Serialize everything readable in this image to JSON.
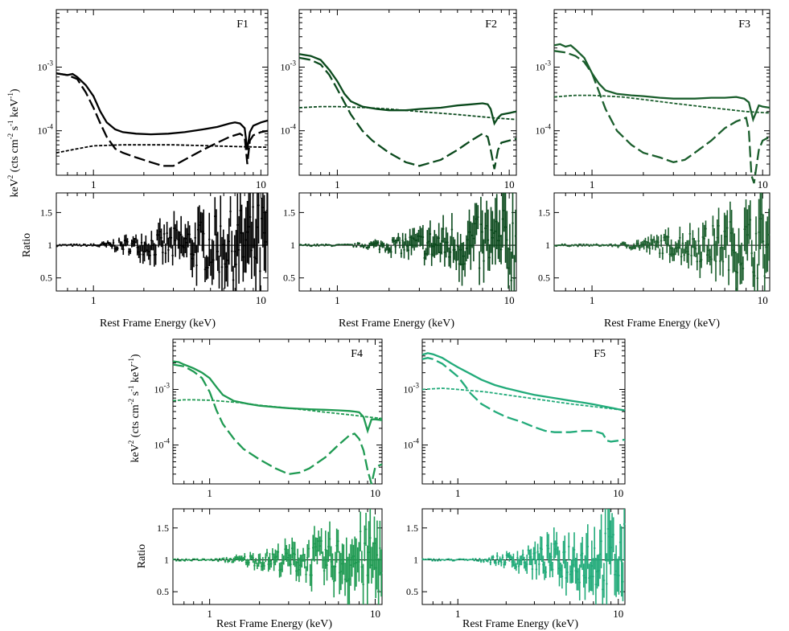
{
  "figure": {
    "spec_ylabel_main": "keV",
    "spec_ylabel_sup": "2",
    "spec_ylabel_rest": " (cts cm",
    "spec_ylabel_sup2": "-2",
    "spec_ylabel_s": " s",
    "spec_ylabel_sup3": "-1",
    "spec_ylabel_kev": " keV",
    "spec_ylabel_sup4": "-1",
    "spec_ylabel_close": ")",
    "ratio_ylabel": "Ratio",
    "xlabel": "Rest Frame Energy (keV)"
  },
  "chart_data": [
    {
      "type": "line",
      "panel": "F1",
      "title": "F1",
      "color": "#000000",
      "xscale": "log",
      "yscale": "log",
      "xlim": [
        0.6,
        11
      ],
      "ylim": [
        2e-05,
        0.008
      ],
      "xticklabels": [
        "1",
        "10"
      ],
      "yticklabels": [
        "10-3",
        "10-4"
      ],
      "series": [
        {
          "style": "solid",
          "x": [
            0.6,
            0.7,
            0.75,
            0.8,
            0.9,
            1.0,
            1.1,
            1.2,
            1.35,
            1.5,
            1.8,
            2.2,
            2.8,
            3.5,
            4.5,
            5.5,
            6.5,
            7.0,
            7.5,
            8.0,
            8.3,
            8.6,
            9.0,
            10.0,
            11.0
          ],
          "y": [
            0.0008,
            0.00075,
            0.00078,
            0.0007,
            0.00052,
            0.00035,
            0.0002,
            0.000135,
            0.000105,
            9.5e-05,
            9e-05,
            8.8e-05,
            9e-05,
            9.5e-05,
            0.000105,
            0.000115,
            0.00013,
            0.000135,
            0.00013,
            0.00011,
            5e-05,
            9.5e-05,
            0.00012,
            0.000135,
            0.000145
          ]
        },
        {
          "style": "dashed",
          "x": [
            0.6,
            0.7,
            0.8,
            0.9,
            1.0,
            1.1,
            1.2,
            1.35,
            1.5,
            1.8,
            2.2,
            2.6,
            3.0,
            3.5,
            4.5,
            5.5,
            6.5,
            7.5,
            8.0,
            8.3,
            8.6,
            9.0,
            10.0,
            11.0
          ],
          "y": [
            0.0008,
            0.00075,
            0.00065,
            0.0004,
            0.00023,
            0.00013,
            8e-05,
            5.2e-05,
            4.5e-05,
            3.8e-05,
            3.2e-05,
            2.8e-05,
            2.8e-05,
            3.5e-05,
            5e-05,
            6.5e-05,
            8e-05,
            9e-05,
            8e-05,
            3e-05,
            7e-05,
            8.5e-05,
            9.5e-05,
            0.0001
          ]
        },
        {
          "style": "dotted",
          "x": [
            0.6,
            0.8,
            1.0,
            1.5,
            2.0,
            3.0,
            5.0,
            8.0,
            11.0
          ],
          "y": [
            4.5e-05,
            5.2e-05,
            5.8e-05,
            6e-05,
            6e-05,
            6e-05,
            5.8e-05,
            5.6e-05,
            5.5e-05
          ]
        }
      ],
      "ratio": {
        "ylim": [
          0.3,
          1.8
        ],
        "yticklabels": [
          "1.5",
          "1",
          "0.5"
        ],
        "noise_start": 0.95,
        "noise_max": 0.7
      }
    },
    {
      "type": "line",
      "panel": "F2",
      "title": "F2",
      "color": "#0b4a1d",
      "xscale": "log",
      "yscale": "log",
      "xlim": [
        0.6,
        11
      ],
      "ylim": [
        2e-05,
        0.008
      ],
      "xticklabels": [
        "1",
        "10"
      ],
      "yticklabels": [
        "10-3",
        "10-4"
      ],
      "series": [
        {
          "style": "solid",
          "x": [
            0.6,
            0.7,
            0.8,
            0.9,
            1.0,
            1.1,
            1.2,
            1.4,
            1.7,
            2.0,
            2.5,
            3.0,
            4.0,
            5.0,
            6.0,
            7.0,
            7.5,
            7.8,
            8.2,
            8.6,
            9.0,
            10.0,
            11.0
          ],
          "y": [
            0.0016,
            0.0015,
            0.0013,
            0.0009,
            0.0006,
            0.00038,
            0.00029,
            0.00024,
            0.00022,
            0.00021,
            0.00021,
            0.00022,
            0.00023,
            0.00025,
            0.00026,
            0.00027,
            0.00026,
            0.00022,
            0.00013,
            0.00016,
            0.00018,
            0.00019,
            0.0002
          ]
        },
        {
          "style": "dashed",
          "x": [
            0.6,
            0.7,
            0.8,
            0.9,
            1.0,
            1.2,
            1.4,
            1.6,
            2.0,
            2.5,
            3.0,
            4.0,
            5.0,
            6.0,
            7.0,
            7.5,
            7.8,
            8.2,
            8.6,
            9.0,
            10.0,
            11.0
          ],
          "y": [
            0.0014,
            0.0013,
            0.0011,
            0.00075,
            0.00045,
            0.00018,
            0.0001,
            7e-05,
            4.5e-05,
            3.2e-05,
            2.8e-05,
            3.5e-05,
            5e-05,
            7e-05,
            9e-05,
            8e-05,
            5e-05,
            2.5e-05,
            5e-05,
            6.5e-05,
            7e-05,
            7.5e-05
          ]
        },
        {
          "style": "dotted",
          "x": [
            0.6,
            0.8,
            1.0,
            1.5,
            2.0,
            3.0,
            5.0,
            8.0,
            11.0
          ],
          "y": [
            0.00023,
            0.00024,
            0.00024,
            0.00023,
            0.00022,
            0.0002,
            0.00018,
            0.00016,
            0.00015
          ]
        }
      ],
      "ratio": {
        "ylim": [
          0.3,
          1.8
        ],
        "yticklabels": [
          "1.5",
          "1",
          "0.5"
        ],
        "noise_start": 1.2,
        "noise_max": 0.6
      }
    },
    {
      "type": "line",
      "panel": "F3",
      "title": "F3",
      "color": "#1a5e2c",
      "xscale": "log",
      "yscale": "log",
      "xlim": [
        0.6,
        11
      ],
      "ylim": [
        2e-05,
        0.008
      ],
      "xticklabels": [
        "1",
        "10"
      ],
      "yticklabels": [
        "10-3",
        "10-4"
      ],
      "series": [
        {
          "style": "solid",
          "x": [
            0.6,
            0.65,
            0.7,
            0.75,
            0.8,
            0.9,
            1.0,
            1.1,
            1.2,
            1.4,
            1.7,
            2.0,
            2.5,
            3.0,
            4.0,
            5.0,
            6.0,
            7.0,
            7.8,
            8.3,
            8.8,
            9.5,
            10.0,
            11.0
          ],
          "y": [
            0.0022,
            0.0023,
            0.0021,
            0.0022,
            0.0019,
            0.0014,
            0.0008,
            0.00055,
            0.00043,
            0.00038,
            0.00036,
            0.00035,
            0.00033,
            0.00032,
            0.00032,
            0.00033,
            0.00033,
            0.00034,
            0.00032,
            0.00028,
            0.00015,
            0.00025,
            0.00024,
            0.00023
          ]
        },
        {
          "style": "dashed",
          "x": [
            0.6,
            0.7,
            0.8,
            0.9,
            1.0,
            1.2,
            1.4,
            1.7,
            2.0,
            2.5,
            3.0,
            3.5,
            4.0,
            5.0,
            6.0,
            7.0,
            8.0,
            8.3,
            8.6,
            8.9,
            9.5,
            10.0,
            11.0
          ],
          "y": [
            0.0018,
            0.0017,
            0.0015,
            0.0012,
            0.0008,
            0.00022,
            0.0001,
            6e-05,
            4.5e-05,
            3.8e-05,
            3.2e-05,
            3.5e-05,
            4.5e-05,
            7e-05,
            0.00011,
            0.00014,
            0.00016,
            0.0001,
            2e-05,
            1.5e-05,
            5e-05,
            7e-05,
            8e-05
          ]
        },
        {
          "style": "dotted",
          "x": [
            0.6,
            0.8,
            1.0,
            1.5,
            2.0,
            3.0,
            5.0,
            8.0,
            11.0
          ],
          "y": [
            0.00034,
            0.00036,
            0.00036,
            0.00034,
            0.00031,
            0.00027,
            0.00023,
            0.0002,
            0.00019
          ]
        }
      ],
      "ratio": {
        "ylim": [
          0.3,
          1.8
        ],
        "yticklabels": [
          "1.5",
          "1",
          "0.5"
        ],
        "noise_start": 1.3,
        "noise_max": 0.55
      }
    },
    {
      "type": "line",
      "panel": "F4",
      "title": "F4",
      "color": "#1f9a52",
      "xscale": "log",
      "yscale": "log",
      "xlim": [
        0.6,
        11
      ],
      "ylim": [
        2e-05,
        0.008
      ],
      "xticklabels": [
        "1",
        "10"
      ],
      "yticklabels": [
        "10-3",
        "10-4"
      ],
      "series": [
        {
          "style": "solid",
          "x": [
            0.6,
            0.65,
            0.7,
            0.8,
            0.9,
            1.0,
            1.1,
            1.2,
            1.4,
            1.7,
            2.0,
            2.5,
            3.0,
            4.0,
            5.0,
            6.0,
            7.0,
            7.5,
            8.0,
            8.5,
            9.0,
            9.5,
            10.0,
            11.0
          ],
          "y": [
            0.0032,
            0.0031,
            0.0028,
            0.0024,
            0.002,
            0.0016,
            0.0011,
            0.0008,
            0.00062,
            0.00055,
            0.00051,
            0.00048,
            0.00046,
            0.00044,
            0.00043,
            0.00042,
            0.00041,
            0.0004,
            0.00039,
            0.00032,
            0.00018,
            0.00029,
            0.00029,
            0.00028
          ]
        },
        {
          "style": "dashed",
          "x": [
            0.6,
            0.7,
            0.8,
            0.9,
            1.0,
            1.1,
            1.2,
            1.4,
            1.6,
            2.0,
            2.5,
            3.0,
            3.5,
            4.0,
            5.0,
            6.0,
            7.0,
            7.5,
            8.0,
            8.5,
            9.0,
            9.5,
            10.0,
            11.0
          ],
          "y": [
            0.0028,
            0.0026,
            0.0021,
            0.0016,
            0.0009,
            0.00042,
            0.00024,
            0.00013,
            8.5e-05,
            5.5e-05,
            3.8e-05,
            3e-05,
            3.2e-05,
            3.8e-05,
            6e-05,
            0.0001,
            0.00015,
            0.00016,
            0.00013,
            8e-05,
            3.5e-05,
            2e-05,
            4e-05,
            4.5e-05
          ]
        },
        {
          "style": "dotted",
          "x": [
            0.6,
            0.7,
            0.8,
            1.0,
            1.5,
            2.0,
            3.0,
            4.0,
            5.0,
            7.0,
            9.0,
            11.0
          ],
          "y": [
            0.00063,
            0.00065,
            0.00065,
            0.00064,
            0.00058,
            0.00052,
            0.00046,
            0.00042,
            0.00039,
            0.00035,
            0.00032,
            0.0003
          ]
        }
      ],
      "ratio": {
        "ylim": [
          0.3,
          1.8
        ],
        "yticklabels": [
          "1.5",
          "1",
          "0.5"
        ],
        "noise_start": 1.1,
        "noise_max": 0.55
      }
    },
    {
      "type": "line",
      "panel": "F5",
      "title": "F5",
      "color": "#22ab7a",
      "xscale": "log",
      "yscale": "log",
      "xlim": [
        0.6,
        11
      ],
      "ylim": [
        2e-05,
        0.008
      ],
      "xticklabels": [
        "1",
        "10"
      ],
      "yticklabels": [
        "10-3",
        "10-4"
      ],
      "series": [
        {
          "style": "solid",
          "x": [
            0.6,
            0.65,
            0.7,
            0.8,
            0.9,
            1.0,
            1.2,
            1.4,
            1.7,
            2.0,
            2.5,
            3.0,
            4.0,
            5.0,
            6.0,
            7.0,
            8.0,
            9.0,
            10.0,
            11.0
          ],
          "y": [
            0.0042,
            0.0045,
            0.0043,
            0.0037,
            0.003,
            0.0025,
            0.0019,
            0.0015,
            0.0012,
            0.00105,
            0.0009,
            0.0008,
            0.0007,
            0.00063,
            0.00058,
            0.00054,
            0.0005,
            0.00047,
            0.00044,
            0.00042
          ]
        },
        {
          "style": "dashed",
          "x": [
            0.6,
            0.65,
            0.7,
            0.8,
            0.9,
            1.0,
            1.1,
            1.2,
            1.4,
            1.7,
            2.0,
            2.5,
            3.0,
            3.5,
            4.0,
            5.0,
            6.0,
            7.0,
            8.0,
            8.5,
            9.0,
            10.0,
            11.0
          ],
          "y": [
            0.0035,
            0.0037,
            0.0035,
            0.0029,
            0.0022,
            0.0017,
            0.0012,
            0.00085,
            0.00055,
            0.0004,
            0.00032,
            0.00026,
            0.00021,
            0.00018,
            0.00017,
            0.00017,
            0.00018,
            0.00018,
            0.00016,
            0.00012,
            0.000115,
            0.00012,
            0.000125
          ]
        },
        {
          "style": "dotted",
          "x": [
            0.6,
            0.8,
            1.0,
            1.5,
            2.0,
            3.0,
            5.0,
            8.0,
            11.0
          ],
          "y": [
            0.001,
            0.00105,
            0.001,
            0.0009,
            0.0008,
            0.00068,
            0.00055,
            0.00047,
            0.00042
          ]
        }
      ],
      "ratio": {
        "ylim": [
          0.3,
          1.8
        ],
        "yticklabels": [
          "1.5",
          "1",
          "0.5"
        ],
        "noise_start": 1.3,
        "noise_max": 0.6
      }
    }
  ]
}
